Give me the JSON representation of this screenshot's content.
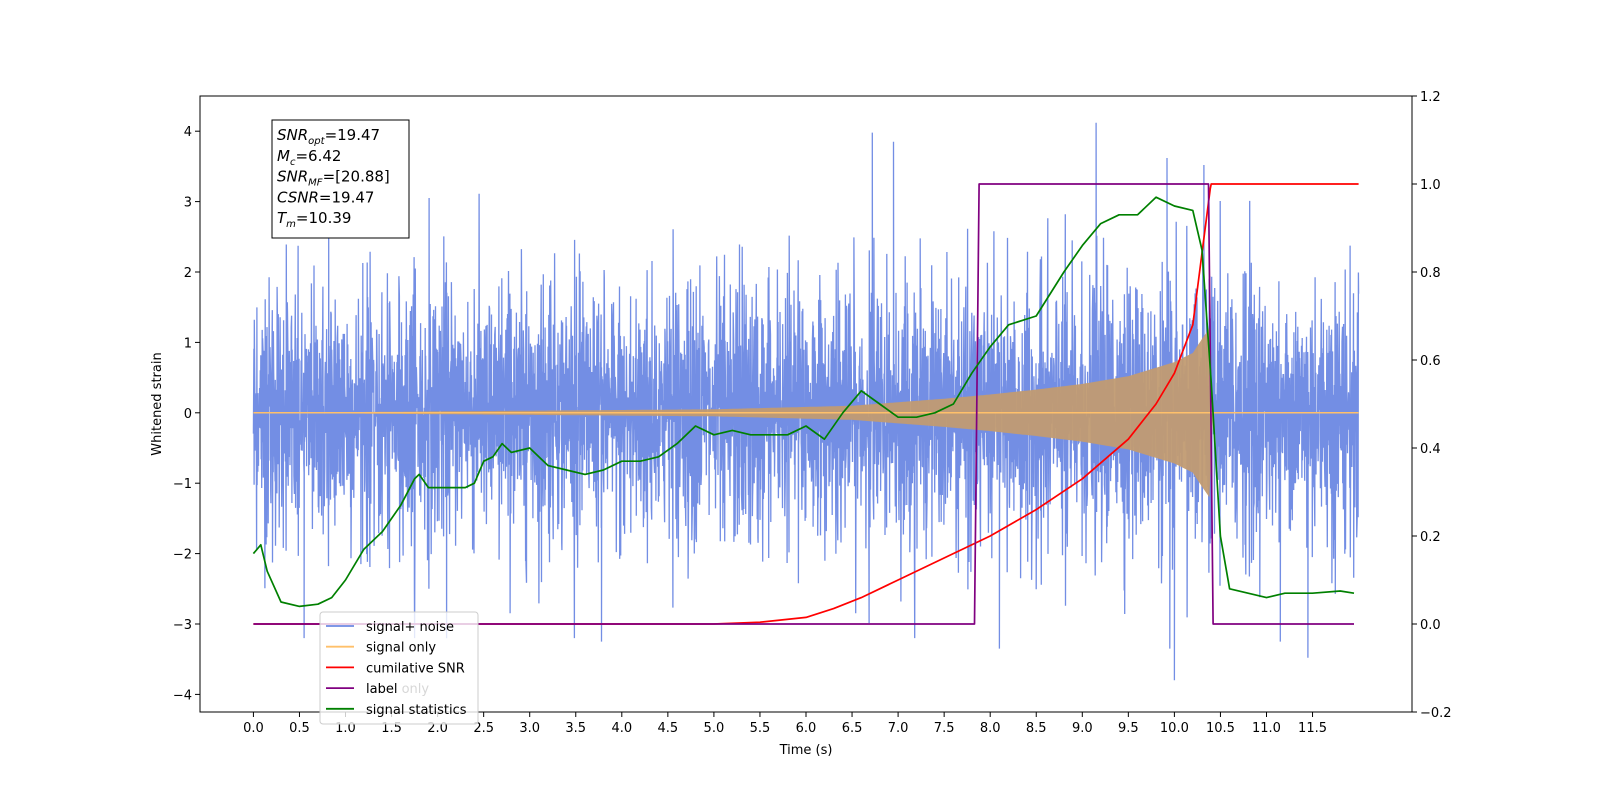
{
  "chart_data": {
    "type": "line",
    "title": "",
    "xlabel": "Time (s)",
    "ylabel": "Whitened strain",
    "ylabel_right": "",
    "xlim": [
      -0.58,
      12.58
    ],
    "ylim": [
      -4.25,
      4.5
    ],
    "ylim_right": [
      -0.2,
      1.2
    ],
    "x_ticks": [
      0.0,
      0.5,
      1.0,
      1.5,
      2.0,
      2.5,
      3.0,
      3.5,
      4.0,
      4.5,
      5.0,
      5.5,
      6.0,
      6.5,
      7.0,
      7.5,
      8.0,
      8.5,
      9.0,
      9.5,
      10.0,
      10.5,
      11.0,
      11.5
    ],
    "x_tick_labels": [
      "0.0",
      "0.5",
      "1.0",
      "1.5",
      "2.0",
      "2.5",
      "3.0",
      "3.5",
      "4.0",
      "4.5",
      "5.0",
      "5.5",
      "6.0",
      "6.5",
      "7.0",
      "7.5",
      "8.0",
      "8.5",
      "9.0",
      "9.5",
      "10.0",
      "10.5",
      "11.0",
      "11.5"
    ],
    "y_ticks": [
      -4,
      -3,
      -2,
      -1,
      0,
      1,
      2,
      3,
      4
    ],
    "y_tick_labels": [
      "−4",
      "−3",
      "−2",
      "−1",
      "0",
      "1",
      "2",
      "3",
      "4"
    ],
    "y_right_ticks": [
      -0.2,
      0.0,
      0.2,
      0.4,
      0.6,
      0.8,
      1.0,
      1.2
    ],
    "y_right_tick_labels": [
      "−0.2",
      "0.0",
      "0.2",
      "0.4",
      "0.6",
      "0.8",
      "1.0",
      "1.2"
    ],
    "grid": false,
    "legend_position": "lower-left",
    "legend": [
      {
        "label": "signal+ noise",
        "color": "#6b88e3"
      },
      {
        "label": "signal only",
        "color": "#ffc06a"
      },
      {
        "label": "cumilative SNR",
        "color": "#ff0000"
      },
      {
        "label": "label",
        "color": "#800080"
      },
      {
        "label": "signal statistics",
        "color": "#008000"
      }
    ],
    "obscured_legend_text": "label only",
    "annotation_box": [
      {
        "base": "SNR",
        "sub": "opt",
        "value": "=19.47"
      },
      {
        "base": "M",
        "sub": "c",
        "value": "=6.42"
      },
      {
        "base": "SNR",
        "sub": "MF",
        "value": "=[20.88]"
      },
      {
        "base": "CSNR",
        "sub": "",
        "value": "=19.47"
      },
      {
        "base": "T",
        "sub": "m",
        "value": "=10.39"
      }
    ],
    "series": [
      {
        "name": "signal+ noise",
        "axis": "left",
        "color": "#6b88e3",
        "x_range": [
          0.0,
          12.0
        ],
        "envelope_typical": 2.2,
        "envelope_max": 4.1,
        "envelope_min": -3.8,
        "spikes": [
          {
            "x": 6.72,
            "y": 3.98
          },
          {
            "x": 6.95,
            "y": 3.85
          },
          {
            "x": 9.15,
            "y": 4.12
          },
          {
            "x": 10.32,
            "y": 3.52
          },
          {
            "x": 9.92,
            "y": 3.62
          },
          {
            "x": 3.78,
            "y": -3.25
          },
          {
            "x": 10.0,
            "y": -3.8
          },
          {
            "x": 9.95,
            "y": -3.35
          },
          {
            "x": 11.15,
            "y": -3.25
          },
          {
            "x": 11.45,
            "y": -3.48
          },
          {
            "x": 8.1,
            "y": -3.35
          },
          {
            "x": 0.55,
            "y": -3.2
          }
        ]
      },
      {
        "name": "signal only",
        "axis": "left",
        "color": "#ffc06a",
        "envelope": [
          [
            0.0,
            0.0
          ],
          [
            5.0,
            0.05
          ],
          [
            6.5,
            0.1
          ],
          [
            7.5,
            0.2
          ],
          [
            8.0,
            0.26
          ],
          [
            8.5,
            0.33
          ],
          [
            9.0,
            0.41
          ],
          [
            9.5,
            0.52
          ],
          [
            10.0,
            0.72
          ],
          [
            10.2,
            0.85
          ],
          [
            10.3,
            1.05
          ],
          [
            10.38,
            1.2
          ],
          [
            10.42,
            0.0
          ],
          [
            12.0,
            0.0
          ]
        ]
      },
      {
        "name": "cumilative SNR",
        "axis": "right",
        "color": "#ff0000",
        "x": [
          0.0,
          5.0,
          5.5,
          6.0,
          6.3,
          6.6,
          7.0,
          7.5,
          8.0,
          8.5,
          9.0,
          9.5,
          9.8,
          10.0,
          10.2,
          10.39,
          10.4,
          11.5,
          12.0
        ],
        "y": [
          0.0,
          0.0,
          0.004,
          0.015,
          0.035,
          0.06,
          0.1,
          0.15,
          0.2,
          0.26,
          0.33,
          0.42,
          0.5,
          0.57,
          0.68,
          0.99,
          1.0,
          1.0,
          1.0
        ]
      },
      {
        "name": "label",
        "axis": "right",
        "color": "#800080",
        "x": [
          0.0,
          7.83,
          7.88,
          10.37,
          10.42,
          11.95
        ],
        "y": [
          0.0,
          0.0,
          1.0,
          1.0,
          0.0,
          0.0
        ]
      },
      {
        "name": "signal statistics",
        "axis": "right",
        "color": "#008000",
        "x": [
          0.0,
          0.08,
          0.15,
          0.3,
          0.5,
          0.7,
          0.85,
          1.0,
          1.2,
          1.4,
          1.6,
          1.75,
          1.8,
          1.9,
          2.1,
          2.3,
          2.4,
          2.5,
          2.6,
          2.7,
          2.8,
          3.0,
          3.2,
          3.4,
          3.6,
          3.8,
          4.0,
          4.2,
          4.4,
          4.6,
          4.8,
          5.0,
          5.2,
          5.4,
          5.6,
          5.8,
          6.0,
          6.2,
          6.4,
          6.6,
          6.8,
          7.0,
          7.2,
          7.4,
          7.6,
          7.8,
          8.0,
          8.2,
          8.5,
          8.8,
          9.0,
          9.2,
          9.4,
          9.6,
          9.8,
          10.0,
          10.2,
          10.3,
          10.4,
          10.5,
          10.6,
          10.8,
          11.0,
          11.2,
          11.5,
          11.8,
          11.95
        ],
        "y": [
          0.16,
          0.18,
          0.12,
          0.05,
          0.04,
          0.045,
          0.06,
          0.1,
          0.17,
          0.21,
          0.27,
          0.33,
          0.34,
          0.31,
          0.31,
          0.31,
          0.32,
          0.37,
          0.38,
          0.41,
          0.39,
          0.4,
          0.36,
          0.35,
          0.34,
          0.35,
          0.37,
          0.37,
          0.38,
          0.41,
          0.45,
          0.43,
          0.44,
          0.43,
          0.43,
          0.43,
          0.45,
          0.42,
          0.48,
          0.53,
          0.5,
          0.47,
          0.47,
          0.48,
          0.5,
          0.57,
          0.63,
          0.68,
          0.7,
          0.8,
          0.86,
          0.91,
          0.93,
          0.93,
          0.97,
          0.95,
          0.94,
          0.85,
          0.55,
          0.2,
          0.08,
          0.07,
          0.06,
          0.07,
          0.07,
          0.075,
          0.07
        ]
      }
    ]
  }
}
